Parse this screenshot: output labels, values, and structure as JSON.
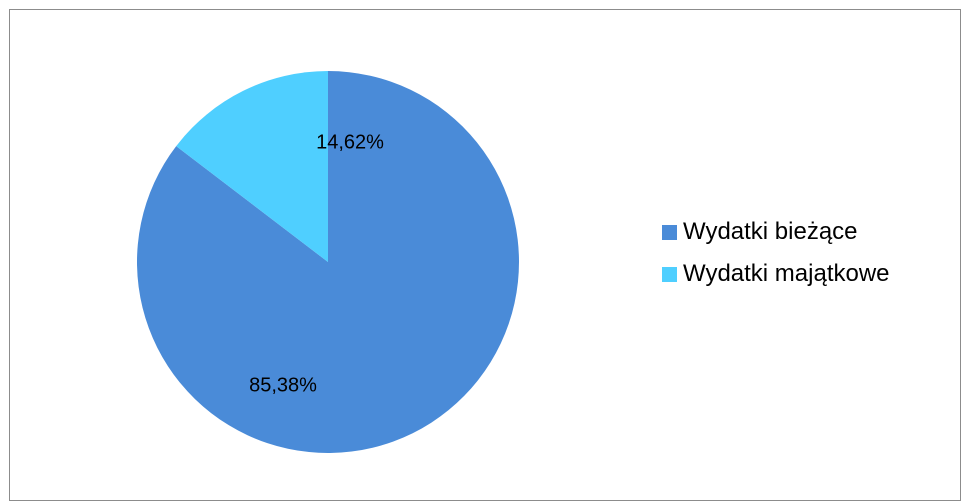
{
  "chart_data": {
    "type": "pie",
    "title": "",
    "series": [
      {
        "name": "Wydatki bieżące",
        "value": 85.38,
        "label": "85,38%",
        "color": "#4a8bd8"
      },
      {
        "name": "Wydatki majątkowe",
        "value": 14.62,
        "label": "14,62%",
        "color": "#4fcfff"
      }
    ],
    "start_angle_deg": 0,
    "direction": "clockwise",
    "legend_position": "right"
  }
}
